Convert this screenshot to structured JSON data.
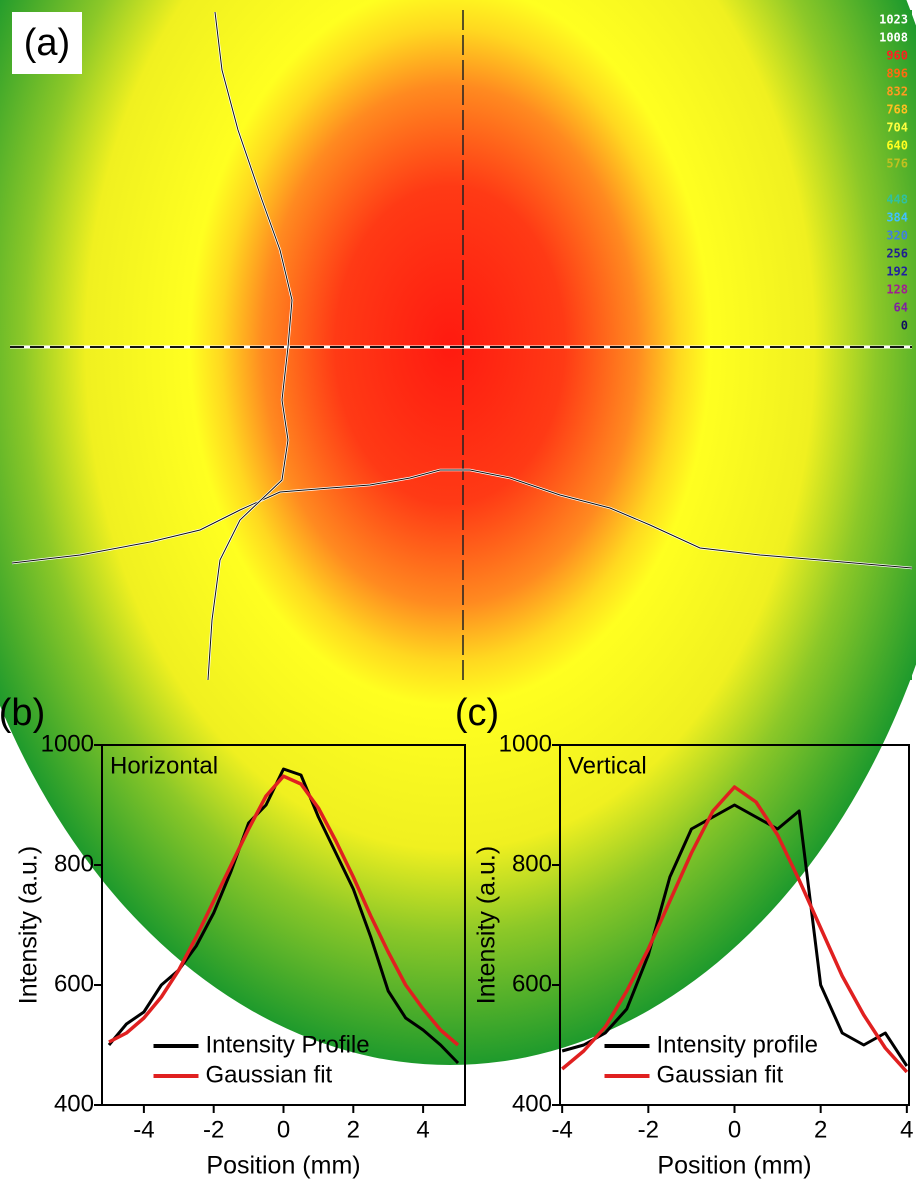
{
  "chart_data": [
    {
      "type": "image",
      "label": "(a)",
      "colorbar_ticks": [
        1023,
        1008,
        960,
        896,
        832,
        768,
        704,
        640,
        576,
        448,
        384,
        320,
        256,
        192,
        128,
        64,
        0
      ],
      "colorbar_colors": [
        "#ffffff",
        "#ffffff",
        "#ff2020",
        "#ff6a10",
        "#ff9a20",
        "#ffc020",
        "#ffff40",
        "#ffff20",
        "#c0c020",
        "#30c0a0",
        "#40c0ff",
        "#4080e0",
        "#202090",
        "#2020a0",
        "#a02090",
        "#8020a0",
        "#101060"
      ]
    },
    {
      "type": "line",
      "label": "(b)",
      "annotation": "Horizontal",
      "xlabel": "Position (mm)",
      "ylabel": "Intensity (a.u.)",
      "x": [
        -5,
        -4.5,
        -4,
        -3.5,
        -3,
        -2.5,
        -2,
        -1.5,
        -1,
        -0.5,
        0,
        0.5,
        1,
        1.5,
        2,
        2.5,
        3,
        3.5,
        4,
        4.5,
        5
      ],
      "series": [
        {
          "name": "Intensity Profile",
          "color": "#000000",
          "values": [
            500,
            535,
            555,
            600,
            625,
            665,
            720,
            790,
            870,
            900,
            960,
            950,
            880,
            820,
            760,
            680,
            590,
            545,
            525,
            500,
            470
          ]
        },
        {
          "name": "Gaussian fit",
          "color": "#e02020",
          "values": [
            505,
            520,
            545,
            580,
            625,
            680,
            740,
            800,
            860,
            915,
            948,
            935,
            895,
            840,
            780,
            715,
            655,
            600,
            560,
            525,
            500
          ]
        }
      ],
      "xlim": [
        -5.2,
        5.2
      ],
      "ylim": [
        400,
        1000
      ],
      "xticks": [
        -4,
        -2,
        0,
        2,
        4
      ],
      "yticks": [
        400,
        600,
        800,
        1000
      ],
      "legend": "lower center"
    },
    {
      "type": "line",
      "label": "(c)",
      "annotation": "Vertical",
      "xlabel": "Position (mm)",
      "ylabel": "Intensity (a.u.)",
      "x": [
        -4,
        -3.5,
        -3,
        -2.5,
        -2,
        -1.5,
        -1,
        -0.5,
        0,
        0.5,
        1,
        1.5,
        2,
        2.5,
        3,
        3.5,
        4
      ],
      "series": [
        {
          "name": "Intensity profile",
          "color": "#000000",
          "values": [
            490,
            500,
            520,
            560,
            650,
            780,
            860,
            880,
            900,
            880,
            860,
            890,
            600,
            520,
            500,
            520,
            465
          ]
        },
        {
          "name": "Gaussian fit",
          "color": "#e02020",
          "values": [
            460,
            490,
            530,
            590,
            660,
            740,
            820,
            890,
            930,
            905,
            850,
            775,
            695,
            615,
            550,
            495,
            455
          ]
        }
      ],
      "xlim": [
        -4.05,
        4.05
      ],
      "ylim": [
        400,
        1000
      ],
      "xticks": [
        -4,
        -2,
        0,
        2,
        4
      ],
      "yticks": [
        400,
        600,
        800,
        1000
      ],
      "legend": "lower center"
    }
  ]
}
